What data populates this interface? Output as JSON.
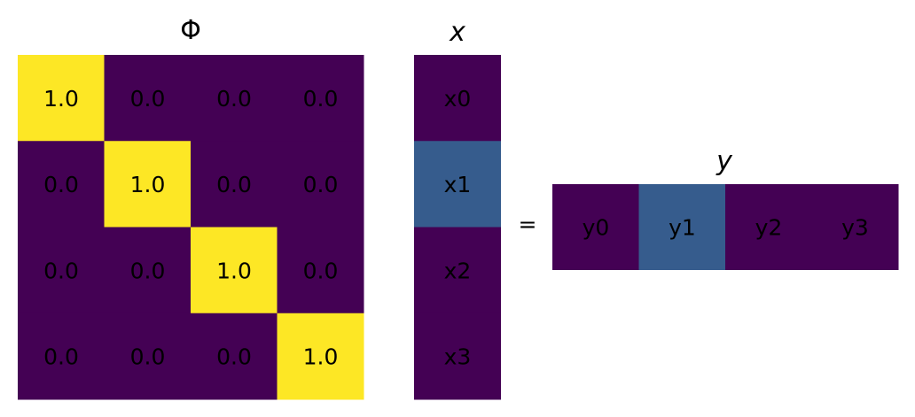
{
  "colors": {
    "low": "#440154",
    "mid": "#365c8d",
    "high": "#fde725",
    "background": "#ffffff",
    "text": "#000000"
  },
  "phi": {
    "title": "Φ",
    "cells": [
      [
        "1.0",
        "0.0",
        "0.0",
        "0.0"
      ],
      [
        "0.0",
        "1.0",
        "0.0",
        "0.0"
      ],
      [
        "0.0",
        "0.0",
        "1.0",
        "0.0"
      ],
      [
        "0.0",
        "0.0",
        "0.0",
        "1.0"
      ]
    ],
    "values": [
      [
        1.0,
        0.0,
        0.0,
        0.0
      ],
      [
        0.0,
        1.0,
        0.0,
        0.0
      ],
      [
        0.0,
        0.0,
        1.0,
        0.0
      ],
      [
        0.0,
        0.0,
        0.0,
        1.0
      ]
    ]
  },
  "x": {
    "title": "x",
    "labels": [
      "x0",
      "x1",
      "x2",
      "x3"
    ],
    "highlight": [
      0,
      1,
      0,
      0
    ]
  },
  "operator": "=",
  "y": {
    "title": "y",
    "labels": [
      "y0",
      "y1",
      "y2",
      "y3"
    ],
    "highlight": [
      0,
      1,
      0,
      0
    ]
  }
}
